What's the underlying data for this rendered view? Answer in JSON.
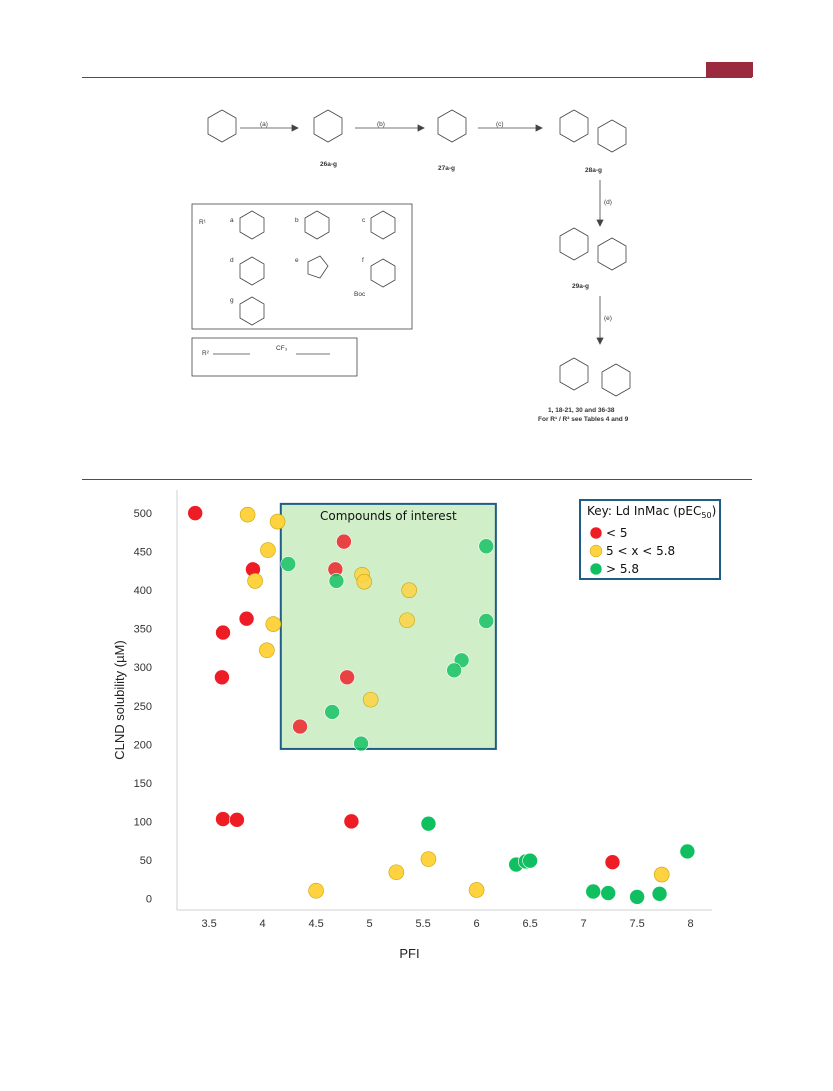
{
  "scheme": {
    "arrows": [
      "(a)",
      "(b)",
      "(c)",
      "(d)",
      "(e)"
    ],
    "compounds": [
      "26a-g",
      "27a-g",
      "28a-g",
      "29a-g"
    ],
    "final_compound": "1, 18-21, 30 and 36-38",
    "final_note": "For R¹ / R² see Tables 4 and 9",
    "r1_label": "R¹",
    "r2_label": "R²",
    "r1_letters": [
      "a",
      "b",
      "c",
      "d",
      "e",
      "f",
      "g"
    ],
    "boc_label": "Boc",
    "cf3_label": "CF₃"
  },
  "chart_data": {
    "type": "scatter",
    "xlabel": "PFI",
    "ylabel": "CLND solubility (µM)",
    "xlim": [
      3.2,
      8.2
    ],
    "ylim": [
      -15,
      530
    ],
    "xticks": [
      3.5,
      4,
      4.5,
      5,
      5.5,
      6,
      6.5,
      7,
      7.5,
      8
    ],
    "yticks": [
      0,
      50,
      100,
      150,
      200,
      250,
      300,
      350,
      400,
      450,
      500
    ],
    "grid": false,
    "legend_position": "top-right",
    "legend_title": "Key: Ld InMac (pEC50)",
    "highlight_box": {
      "label": "Compounds of interest",
      "x": [
        4.17,
        6.18
      ],
      "y": [
        194,
        512
      ],
      "color": "#c8ecbf"
    },
    "series": [
      {
        "name": "< 5",
        "color": "#ee1c25",
        "points": [
          [
            3.37,
            500
          ],
          [
            3.63,
            345
          ],
          [
            3.62,
            287
          ],
          [
            3.85,
            363
          ],
          [
            3.91,
            427
          ],
          [
            3.63,
            103
          ],
          [
            3.76,
            102
          ],
          [
            4.83,
            100
          ],
          [
            7.27,
            47
          ],
          [
            4.35,
            223
          ],
          [
            4.79,
            287
          ],
          [
            4.68,
            427
          ],
          [
            4.76,
            463
          ]
        ]
      },
      {
        "name": "5 < x < 5.8",
        "color": "#ffd23f",
        "points": [
          [
            3.86,
            498
          ],
          [
            4.14,
            489
          ],
          [
            4.05,
            452
          ],
          [
            3.93,
            412
          ],
          [
            4.1,
            356
          ],
          [
            4.04,
            322
          ],
          [
            4.93,
            420
          ],
          [
            4.95,
            411
          ],
          [
            5.37,
            400
          ],
          [
            5.35,
            361
          ],
          [
            5.01,
            258
          ],
          [
            4.5,
            10
          ],
          [
            5.25,
            34
          ],
          [
            5.55,
            51
          ],
          [
            6.0,
            11
          ],
          [
            7.73,
            31
          ]
        ]
      },
      {
        "name": "> 5.8",
        "color": "#10c060",
        "points": [
          [
            4.24,
            434
          ],
          [
            4.69,
            412
          ],
          [
            6.09,
            457
          ],
          [
            6.09,
            360
          ],
          [
            5.86,
            309
          ],
          [
            5.79,
            296
          ],
          [
            4.65,
            242
          ],
          [
            4.92,
            201
          ],
          [
            5.55,
            97
          ],
          [
            6.37,
            44
          ],
          [
            6.46,
            48
          ],
          [
            6.5,
            49
          ],
          [
            7.09,
            9
          ],
          [
            7.23,
            7
          ],
          [
            7.5,
            2
          ],
          [
            7.71,
            6
          ],
          [
            7.97,
            61
          ]
        ]
      }
    ]
  }
}
